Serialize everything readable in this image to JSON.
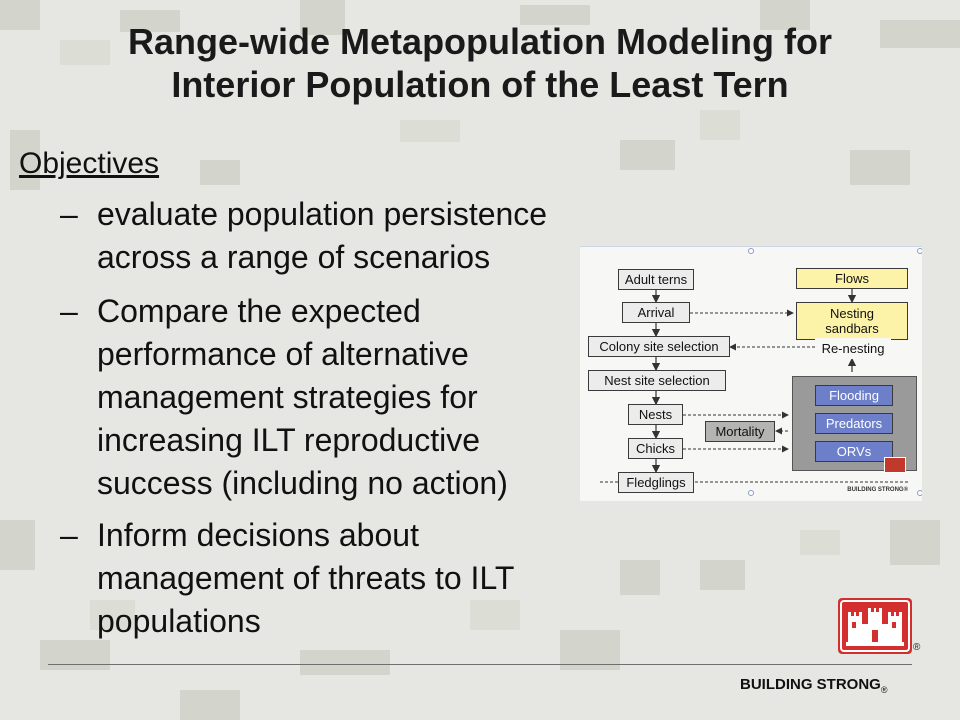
{
  "slide": {
    "title_line1": "Range-wide Metapopulation Modeling for",
    "title_line2": "Interior Population of the Least Tern",
    "heading": "Objectives",
    "bullets": [
      {
        "dash": "–",
        "lines": [
          "evaluate population persistence",
          "across a range of scenarios"
        ]
      },
      {
        "dash": "–",
        "lines": [
          "Compare the expected",
          "performance of alternative",
          "management strategies for",
          "increasing ILT reproductive",
          "success (including no action)"
        ]
      },
      {
        "dash": "–",
        "lines": [
          "Inform decisions about",
          "management of threats to ILT",
          "populations"
        ]
      }
    ]
  },
  "diagram": {
    "nodes": {
      "adult_terns": "Adult terns",
      "arrival": "Arrival",
      "colony_site_selection": "Colony site selection",
      "nest_site_selection": "Nest site selection",
      "nests": "Nests",
      "chicks": "Chicks",
      "fledglings": "Fledglings",
      "mortality": "Mortality",
      "flows": "Flows",
      "nesting_sandbars_1": "Nesting",
      "nesting_sandbars_2": "sandbars",
      "re_nesting": "Re-nesting",
      "flooding": "Flooding",
      "predators": "Predators",
      "orvs": "ORVs"
    },
    "mini_footer": "BUILDING STRONG®"
  },
  "footer": {
    "text": "BUILDING STRONG",
    "registered": "®"
  },
  "colors": {
    "threat_blue": "#6d7fc9",
    "habitat_yellow": "#fdf3a8",
    "usace_red": "#d32f2f"
  }
}
